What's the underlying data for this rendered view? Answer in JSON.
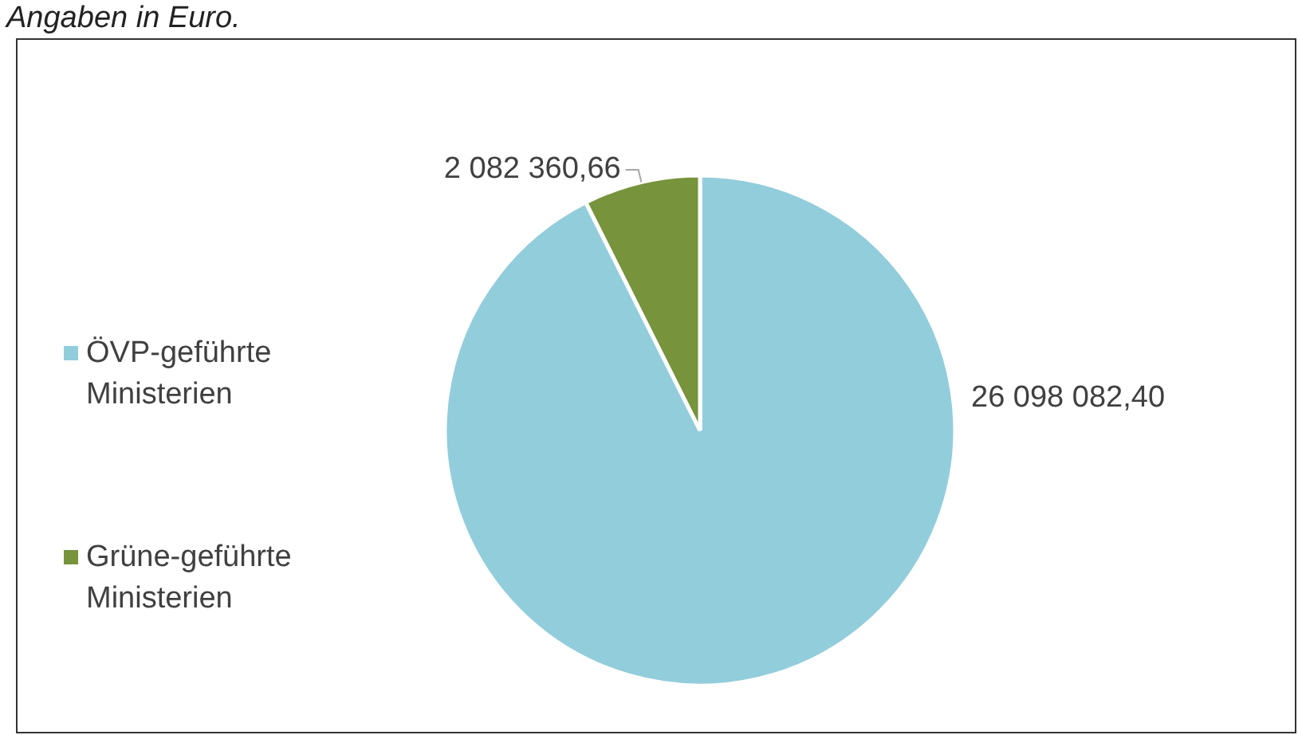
{
  "chart_data": {
    "type": "pie",
    "title": "Angaben in Euro.",
    "categories": [
      "ÖVP-geführte Ministerien",
      "Grüne-geführte Ministerien"
    ],
    "values": [
      26098082.4,
      2082360.66
    ],
    "colors": [
      "#92cddc",
      "#77933c"
    ],
    "value_labels": [
      "26 098 082,40",
      "2 082 360,66"
    ],
    "legend": "left"
  }
}
